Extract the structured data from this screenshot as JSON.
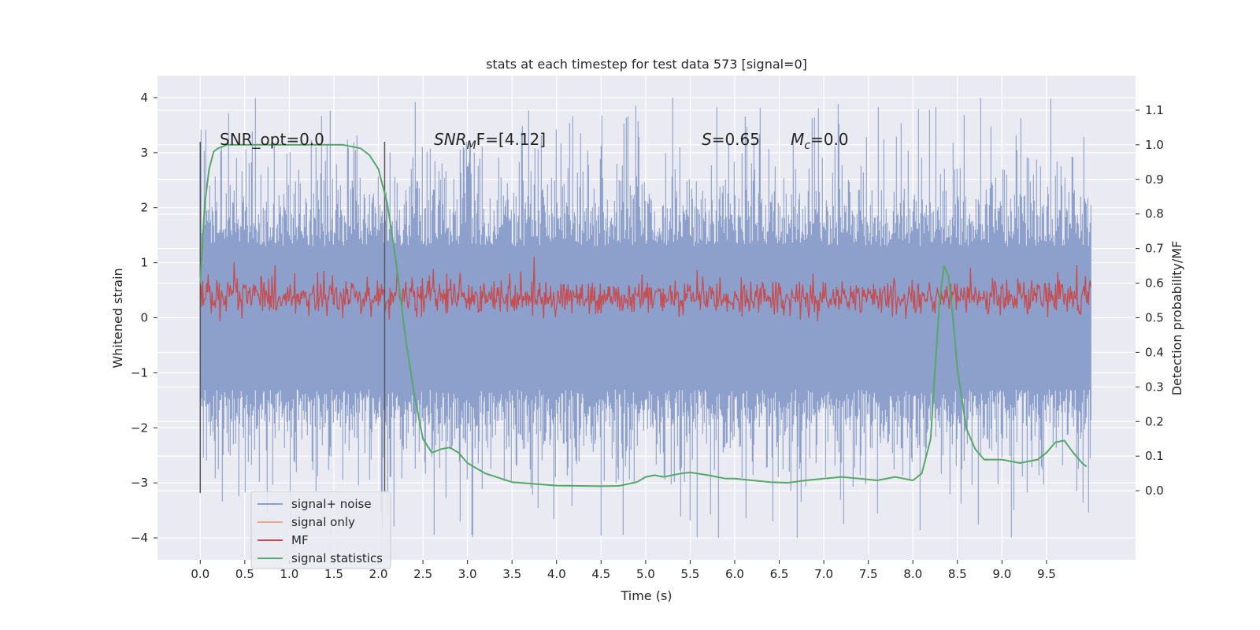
{
  "chart_data": {
    "type": "line",
    "title": "stats at each timestep for test data 573 [signal=0]",
    "xlabel": "Time (s)",
    "ylabel_left": "Whitened strain",
    "ylabel_right": "Detection probability/MF",
    "xlim": [
      -0.48,
      10.5
    ],
    "ylim_left": [
      -4.4,
      4.4
    ],
    "ylim_right": [
      -0.2,
      1.2
    ],
    "x_ticks": [
      "0.0",
      "0.5",
      "1.0",
      "1.5",
      "2.0",
      "2.5",
      "3.0",
      "3.5",
      "4.0",
      "4.5",
      "5.0",
      "5.5",
      "6.0",
      "6.5",
      "7.0",
      "7.5",
      "8.0",
      "8.5",
      "9.0",
      "9.5"
    ],
    "y_left_ticks": [
      "4",
      "3",
      "2",
      "1",
      "0",
      "−1",
      "−2",
      "−3",
      "−4"
    ],
    "y_right_ticks": [
      "1.1",
      "1.0",
      "0.9",
      "0.8",
      "0.7",
      "0.6",
      "0.5",
      "0.4",
      "0.3",
      "0.2",
      "0.1",
      "0.0"
    ],
    "grid": true,
    "legend_position": "lower-left",
    "annotations": {
      "snr_opt": "SNR_opt=0.0",
      "snr_mf_a": "SNR",
      "snr_mf_sub": "M",
      "snr_mf_b": "F=[4.12]",
      "s_var": "S",
      "s_val": "=0.65",
      "mc_var": "M",
      "mc_sub": "c",
      "mc_val": "=0.0"
    },
    "vlines": [
      0.0,
      2.07
    ],
    "series": [
      {
        "name": "signal+ noise",
        "color": "#8da0cb",
        "axis": "left",
        "kind": "noise",
        "x_range": [
          0.0,
          10.0
        ],
        "envelope_typical": 1.3,
        "peak_range": [
          -4.0,
          4.0
        ]
      },
      {
        "name": "signal only",
        "color": "#e8a98a",
        "axis": "left",
        "kind": "flat",
        "values": []
      },
      {
        "name": "MF",
        "color": "#c44e52",
        "axis": "right",
        "kind": "noise",
        "x_range": [
          0.0,
          10.0
        ],
        "center": 0.56,
        "range": [
          0.49,
          0.69
        ]
      },
      {
        "name": "signal statistics",
        "color": "#55a868",
        "axis": "right",
        "kind": "line",
        "x": [
          0.0,
          0.05,
          0.1,
          0.15,
          0.2,
          0.3,
          0.5,
          0.8,
          1.0,
          1.3,
          1.6,
          1.8,
          1.9,
          2.0,
          2.1,
          2.2,
          2.3,
          2.4,
          2.5,
          2.6,
          2.7,
          2.8,
          2.9,
          3.0,
          3.2,
          3.5,
          4.0,
          4.5,
          4.7,
          4.9,
          5.0,
          5.1,
          5.2,
          5.4,
          5.5,
          5.7,
          5.9,
          6.0,
          6.2,
          6.4,
          6.6,
          6.8,
          7.0,
          7.2,
          7.4,
          7.6,
          7.8,
          8.0,
          8.1,
          8.2,
          8.3,
          8.35,
          8.4,
          8.45,
          8.5,
          8.6,
          8.7,
          8.8,
          8.9,
          9.0,
          9.2,
          9.4,
          9.5,
          9.6,
          9.7,
          9.8,
          9.9,
          9.95
        ],
        "y": [
          0.6,
          0.83,
          0.93,
          0.98,
          0.99,
          1.0,
          1.0,
          1.0,
          1.0,
          1.0,
          1.0,
          0.99,
          0.97,
          0.93,
          0.83,
          0.66,
          0.45,
          0.28,
          0.15,
          0.11,
          0.12,
          0.125,
          0.11,
          0.08,
          0.05,
          0.025,
          0.015,
          0.013,
          0.014,
          0.025,
          0.04,
          0.045,
          0.04,
          0.05,
          0.053,
          0.045,
          0.035,
          0.035,
          0.03,
          0.025,
          0.023,
          0.03,
          0.035,
          0.04,
          0.035,
          0.03,
          0.04,
          0.03,
          0.05,
          0.15,
          0.55,
          0.65,
          0.62,
          0.5,
          0.35,
          0.18,
          0.12,
          0.09,
          0.09,
          0.09,
          0.08,
          0.09,
          0.11,
          0.14,
          0.145,
          0.11,
          0.08,
          0.07
        ]
      }
    ]
  }
}
